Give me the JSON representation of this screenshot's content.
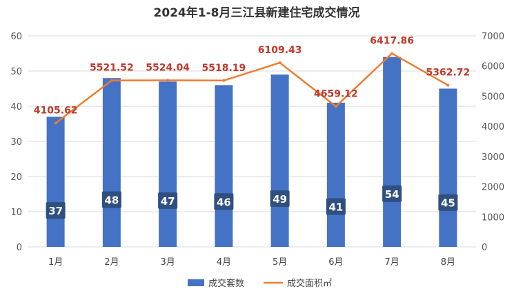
{
  "chart_data": {
    "type": "bar",
    "title": "2024年1-8月三江县新建住宅成交情况",
    "categories": [
      "1月",
      "2月",
      "3月",
      "4月",
      "5月",
      "6月",
      "7月",
      "8月"
    ],
    "series": [
      {
        "name": "成交套数",
        "type": "bar",
        "axis": "left",
        "values": [
          37,
          48,
          47,
          46,
          49,
          41,
          54,
          45
        ],
        "value_labels": [
          "37",
          "48",
          "47",
          "46",
          "49",
          "41",
          "54",
          "45"
        ]
      },
      {
        "name": "成交面积㎡",
        "type": "line",
        "axis": "right",
        "values": [
          4105.62,
          5521.52,
          5524.04,
          5518.19,
          6109.43,
          4659.12,
          6417.86,
          5362.72
        ],
        "value_labels": [
          "4105.62",
          "5521.52",
          "5524.04",
          "5518.19",
          "6109.43",
          "4659.12",
          "6417.86",
          "5362.72"
        ]
      }
    ],
    "y_left": {
      "range": [
        0,
        60
      ],
      "ticks": [
        "0",
        "10",
        "20",
        "30",
        "40",
        "50",
        "60"
      ]
    },
    "y_right": {
      "range": [
        0,
        7000
      ],
      "ticks": [
        "0",
        "1000",
        "2000",
        "3000",
        "4000",
        "5000",
        "6000",
        "7000"
      ]
    },
    "grid": true,
    "legend_position": "bottom",
    "colors": {
      "bar": "#4472C4",
      "bar_label_bg": "#2F4F7F",
      "line": "#ED7D31",
      "line_label": "#C0392B",
      "grid": "#D9D9D9"
    }
  }
}
